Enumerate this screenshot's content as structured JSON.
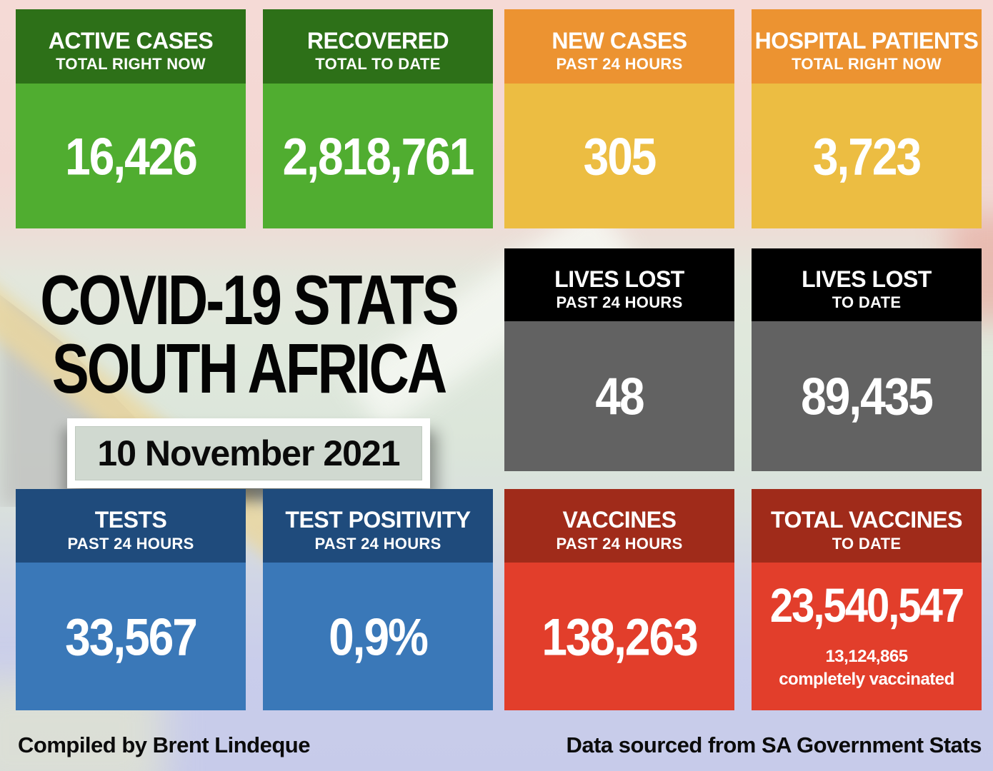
{
  "page": {
    "title_line1": "COVID-19 STATS",
    "title_line2": "SOUTH AFRICA",
    "date": "10 November 2021"
  },
  "footer": {
    "left": "Compiled by Brent Lindeque",
    "right": "Data sourced from SA Government Stats"
  },
  "colors": {
    "green_header": "#2d7018",
    "green_body": "#50ad30",
    "orange_header": "#ec9331",
    "orange_body": "#ecbd42",
    "black_header": "#000000",
    "grey_body": "#626262",
    "blue_header": "#1f4b7c",
    "blue_body": "#3a78b8",
    "red_header": "#a02b1a",
    "red_body": "#e23e2b",
    "background_pink": "#f5d9d5",
    "background_green": "#dfe8dc",
    "background_lavender": "#c9cdeb"
  },
  "cards": [
    {
      "id": "active-cases",
      "title": "ACTIVE CASES",
      "subtitle": "TOTAL RIGHT NOW",
      "value": "16,426",
      "header_color": "#2d7018",
      "body_color": "#50ad30"
    },
    {
      "id": "recovered",
      "title": "RECOVERED",
      "subtitle": "TOTAL TO DATE",
      "value": "2,818,761",
      "header_color": "#2d7018",
      "body_color": "#50ad30"
    },
    {
      "id": "new-cases",
      "title": "NEW CASES",
      "subtitle": "PAST 24 HOURS",
      "value": "305",
      "header_color": "#ec9331",
      "body_color": "#ecbd42"
    },
    {
      "id": "hospital-patients",
      "title": "HOSPITAL PATIENTS",
      "subtitle": "TOTAL RIGHT NOW",
      "value": "3,723",
      "header_color": "#ec9331",
      "body_color": "#ecbd42"
    },
    {
      "id": "lives-lost-24h",
      "title": "LIVES LOST",
      "subtitle": "PAST 24 HOURS",
      "value": "48",
      "header_color": "#000000",
      "body_color": "#626262"
    },
    {
      "id": "lives-lost-total",
      "title": "LIVES LOST",
      "subtitle": "TO DATE",
      "value": "89,435",
      "header_color": "#000000",
      "body_color": "#626262"
    },
    {
      "id": "tests",
      "title": "TESTS",
      "subtitle": "PAST 24 HOURS",
      "value": "33,567",
      "header_color": "#1f4b7c",
      "body_color": "#3a78b8"
    },
    {
      "id": "test-positivity",
      "title": "TEST POSITIVITY",
      "subtitle": "PAST 24 HOURS",
      "value": "0,9%",
      "header_color": "#1f4b7c",
      "body_color": "#3a78b8"
    },
    {
      "id": "vaccines-24h",
      "title": "VACCINES",
      "subtitle": "PAST 24 HOURS",
      "value": "138,263",
      "header_color": "#a02b1a",
      "body_color": "#e23e2b"
    },
    {
      "id": "total-vaccines",
      "title": "TOTAL VACCINES",
      "subtitle": "TO DATE",
      "value": "23,540,547",
      "extra_value": "13,124,865",
      "extra_label": "completely vaccinated",
      "header_color": "#a02b1a",
      "body_color": "#e23e2b"
    }
  ],
  "chart_data": {
    "type": "table",
    "title": "COVID-19 STATS SOUTH AFRICA",
    "date": "10 November 2021",
    "metrics": [
      {
        "label": "Active cases (total right now)",
        "value": 16426
      },
      {
        "label": "Recovered (total to date)",
        "value": 2818761
      },
      {
        "label": "New cases (past 24 hours)",
        "value": 305
      },
      {
        "label": "Hospital patients (total right now)",
        "value": 3723
      },
      {
        "label": "Lives lost (past 24 hours)",
        "value": 48
      },
      {
        "label": "Lives lost (to date)",
        "value": 89435
      },
      {
        "label": "Tests (past 24 hours)",
        "value": 33567
      },
      {
        "label": "Test positivity (past 24 hours)",
        "value": "0.9%"
      },
      {
        "label": "Vaccines (past 24 hours)",
        "value": 138263
      },
      {
        "label": "Total vaccines (to date)",
        "value": 23540547
      },
      {
        "label": "Completely vaccinated",
        "value": 13124865
      }
    ]
  }
}
